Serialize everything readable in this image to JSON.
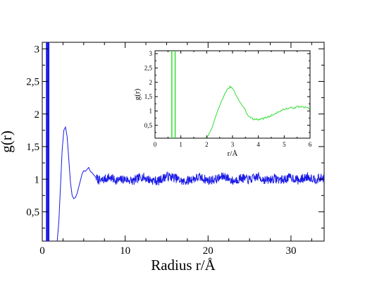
{
  "chart_data": [
    {
      "type": "line",
      "title": "",
      "xlabel": "Radius r/Å",
      "ylabel": "g(r)",
      "xlim": [
        0,
        34
      ],
      "ylim": [
        0.05,
        3.1
      ],
      "x_ticks": [
        0,
        10,
        20,
        30
      ],
      "x_tick_labels": [
        "0",
        "10",
        "20",
        "30"
      ],
      "y_ticks": [
        0.5,
        1,
        1.5,
        2,
        2.5,
        3
      ],
      "y_tick_labels": [
        "0,5",
        "1",
        "1,5",
        "2",
        "2,5",
        "3"
      ],
      "grid": false,
      "color": "#1a1ae6",
      "vertical_lines": [
        0.55,
        0.75
      ],
      "series": [
        {
          "x": [
            1.8,
            2.0,
            2.2,
            2.4,
            2.6,
            2.8,
            3.0,
            3.2,
            3.4,
            3.6,
            3.8,
            4.0,
            4.2,
            4.4,
            4.6,
            4.8,
            5.0,
            5.2,
            5.4,
            5.6,
            5.8,
            6.0,
            6.5,
            7.0,
            8,
            9,
            10,
            11,
            12,
            13,
            14,
            15,
            16,
            17,
            18,
            19,
            20,
            21,
            22,
            23,
            24,
            25,
            26,
            27,
            28,
            29,
            30,
            31,
            32,
            33,
            34
          ],
          "y": [
            0.05,
            0.35,
            0.9,
            1.45,
            1.75,
            1.8,
            1.65,
            1.3,
            0.95,
            0.75,
            0.7,
            0.72,
            0.78,
            0.88,
            0.98,
            1.08,
            1.13,
            1.12,
            1.15,
            1.18,
            1.12,
            1.1,
            1.02,
            0.97,
            1.03,
            0.98,
            1.0,
            0.97,
            1.04,
            0.99,
            0.97,
            1.05,
            1.02,
            0.96,
            1.0,
            1.03,
            0.98,
            1.0,
            1.05,
            0.97,
            1.02,
            0.99,
            1.04,
            0.98,
            1.01,
            0.99,
            1.03,
            0.98,
            1.04,
            1.0,
            1.02
          ]
        }
      ]
    },
    {
      "type": "line",
      "title": "",
      "xlabel": "r/Å",
      "ylabel": "g(r)",
      "xlim": [
        0,
        6
      ],
      "ylim": [
        0.05,
        3.1
      ],
      "x_ticks": [
        0,
        1,
        2,
        3,
        4,
        5,
        6
      ],
      "x_tick_labels": [
        "0",
        "1",
        "2",
        "3",
        "4",
        "5",
        "6"
      ],
      "y_ticks": [
        0.5,
        1,
        1.5,
        2,
        2.5,
        3
      ],
      "y_tick_labels": [
        "0,5",
        "1",
        "1,5",
        "2",
        "2,5",
        "3"
      ],
      "grid": false,
      "color": "#33dd33",
      "vertical_lines": [
        0.65,
        0.78
      ],
      "series": [
        {
          "x": [
            2.0,
            2.2,
            2.4,
            2.6,
            2.8,
            2.9,
            3.0,
            3.1,
            3.2,
            3.4,
            3.6,
            3.8,
            4.0,
            4.2,
            4.4,
            4.6,
            4.8,
            5.0,
            5.2,
            5.4,
            5.6,
            5.8,
            6.0
          ],
          "y": [
            0.05,
            0.4,
            0.95,
            1.4,
            1.75,
            1.85,
            1.78,
            1.62,
            1.45,
            1.15,
            0.85,
            0.72,
            0.7,
            0.74,
            0.8,
            0.88,
            0.98,
            1.05,
            1.1,
            1.12,
            1.15,
            1.12,
            1.1
          ]
        }
      ]
    }
  ]
}
